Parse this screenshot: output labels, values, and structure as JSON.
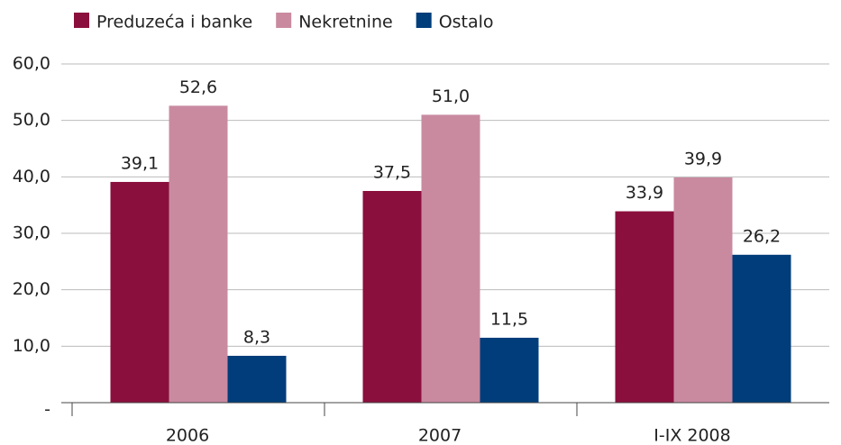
{
  "chart_data": {
    "type": "bar",
    "categories": [
      "2006",
      "2007",
      "I-IX 2008"
    ],
    "series": [
      {
        "name": "Preduzeća i banke",
        "color": "#8b0f3c",
        "values": [
          39.1,
          37.5,
          33.9
        ],
        "value_labels": [
          "39,1",
          "37,5",
          "33,9"
        ]
      },
      {
        "name": "Nekretnine",
        "color": "#c98aa0",
        "values": [
          52.6,
          51.0,
          39.9
        ],
        "value_labels": [
          "52,6",
          "51,0",
          "39,9"
        ]
      },
      {
        "name": "Ostalo",
        "color": "#003d7a",
        "values": [
          8.3,
          11.5,
          26.2
        ],
        "value_labels": [
          "8,3",
          "11,5",
          "26,2"
        ]
      }
    ],
    "ylim": [
      0,
      60
    ],
    "yticks": [
      {
        "value": 0,
        "label": "-"
      },
      {
        "value": 10,
        "label": "10,0"
      },
      {
        "value": 20,
        "label": "20,0"
      },
      {
        "value": 30,
        "label": "30,0"
      },
      {
        "value": 40,
        "label": "40,0"
      },
      {
        "value": 50,
        "label": "50,0"
      },
      {
        "value": 60,
        "label": "60,0"
      }
    ],
    "grid": true,
    "legend": "top"
  }
}
